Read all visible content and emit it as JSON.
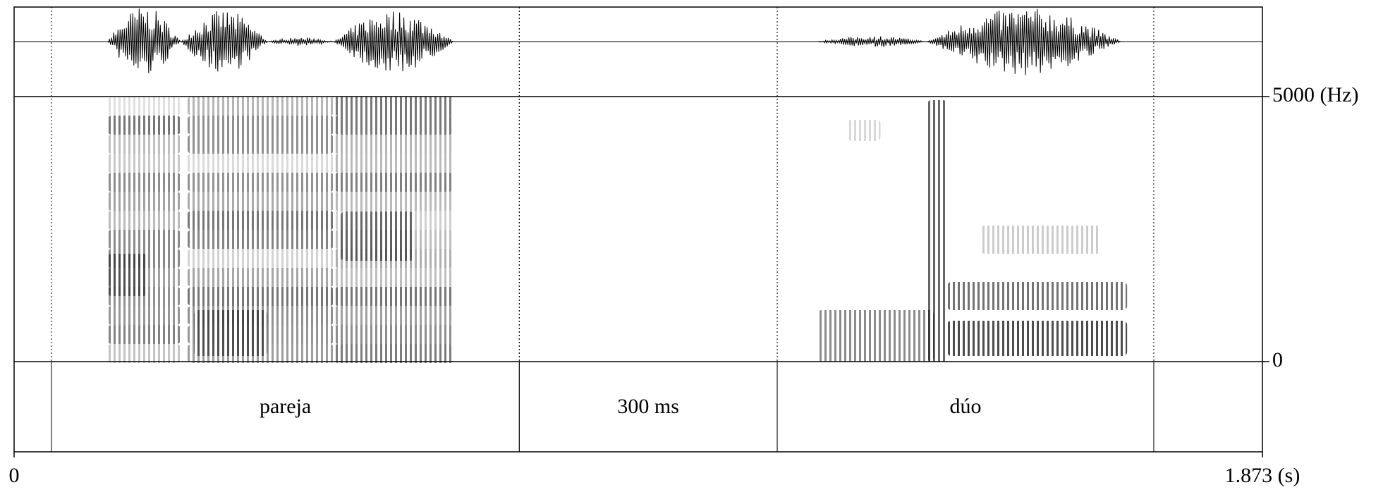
{
  "chart_data": {
    "type": "spectrogram",
    "xlim": [
      0,
      1.873
    ],
    "xticks": [
      0,
      {
        "value": 1.873,
        "label": "1.873 (s)"
      }
    ],
    "ylim": [
      0,
      5000
    ],
    "yticks": [
      0,
      {
        "value": 5000,
        "label": "5000 (Hz)"
      }
    ],
    "tier": [
      {
        "start": 0.056,
        "end": 0.758,
        "label": "pareja"
      },
      {
        "start": 0.758,
        "end": 1.145,
        "label": "300 ms"
      },
      {
        "start": 1.145,
        "end": 1.71,
        "label": "dúo"
      }
    ]
  }
}
